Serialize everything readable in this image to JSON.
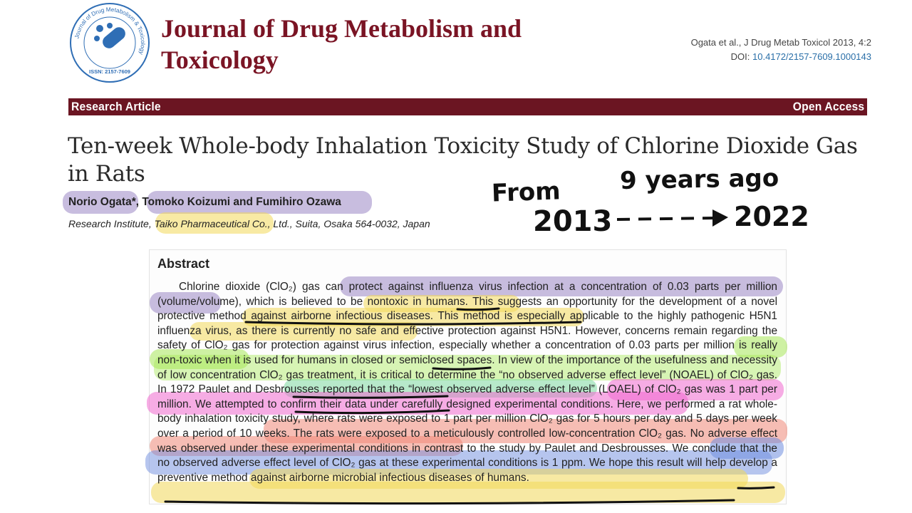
{
  "journal": {
    "name": "Journal of Drug Metabolism and Toxicology",
    "logo_text": "Journal of Drug Metabolism & Toxicology",
    "issn": "ISSN: 2157-7609",
    "citation": "Ogata et al., J Drug Metab Toxicol 2013, 4:2",
    "doi_label": "DOI:",
    "doi": "10.4172/2157-7609.1000143"
  },
  "banner": {
    "left": "Research Article",
    "right": "Open Access"
  },
  "article": {
    "title": "Ten-week Whole-body Inhalation Toxicity Study of Chlorine Dioxide Gas in Rats",
    "authors": "Norio Ogata*, Tomoko Koizumi and Fumihiro Ozawa",
    "affiliation": "Research Institute, Taiko Pharmaceutical Co., Ltd., Suita, Osaka 564-0032, Japan"
  },
  "annotation": {
    "from": "From",
    "years_ago": "9 years ago",
    "year_start": "2013",
    "year_end": "2022"
  },
  "abstract": {
    "heading": "Abstract",
    "text": "Chlorine dioxide (ClO₂) gas can protect against influenza virus infection at a concentration of 0.03 parts per million (volume/volume), which is believed to be nontoxic in humans. This suggests an opportunity for the development of a novel protective method against airborne infectious diseases. This method is especially applicable to the highly pathogenic H5N1 influenza virus, as there is currently no safe and effective protection against H5N1. However, concerns remain regarding the safety of ClO₂ gas for protection against virus infection, especially whether a concentration of 0.03 parts per million is really non-toxic when it is used for humans in closed or semiclosed spaces. In view of the importance of the usefulness and necessity of low concentration ClO₂ gas treatment, it is critical to determine the “no observed adverse effect level” (NOAEL) of ClO₂ gas. In 1972 Paulet and Desbrousses reported that the “lowest observed adverse effect level” (LOAEL) of ClO₂ gas was 1 part per million. We attempted to confirm their data under carefully designed experimental conditions. Here, we performed a rat whole-body inhalation toxicity study, where rats were exposed to 1 part per million ClO₂ gas for 5 hours per day and 5 days per week over a period of 10 weeks. The rats were exposed to a meticulously controlled low-concentration ClO₂ gas. No adverse effect was observed under these experimental conditions in contrast to the study by Paulet and Desbrousses. We conclude that the no observed adverse effect level of ClO₂ gas at these experimental conditions is 1 ppm. We hope this result will help develop a preventive method against airborne microbial infectious diseases of humans."
  },
  "colors": {
    "journal_red": "#7a1424",
    "banner": "#6b1522",
    "highlight_purple": "#9b86c4",
    "highlight_yellow": "#f3d95a",
    "highlight_green": "#a8e85a",
    "highlight_pink": "#f06ad0",
    "highlight_salmon": "#f08878",
    "highlight_blue": "#6f8ee0"
  }
}
